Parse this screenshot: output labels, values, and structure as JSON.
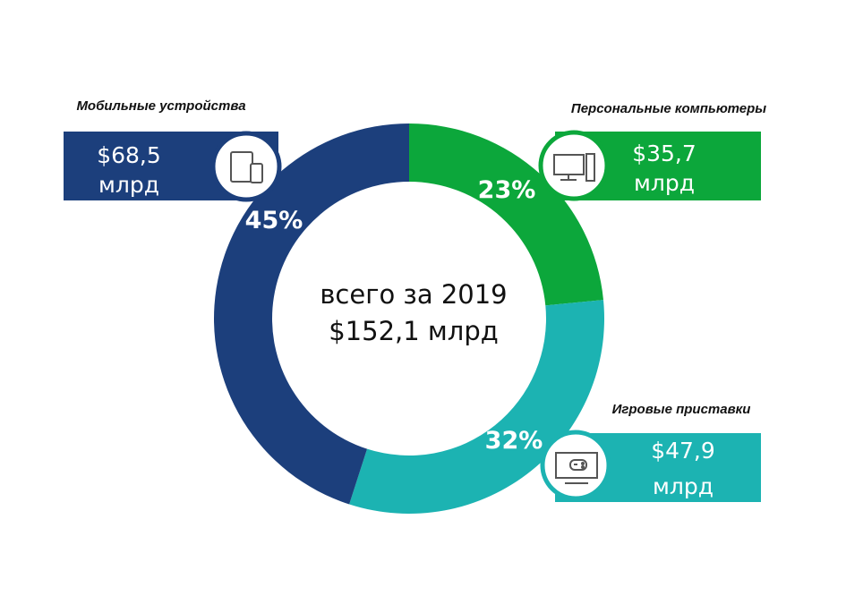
{
  "chart_data": {
    "type": "pie",
    "variant": "donut",
    "center_text": [
      "всего за 2019",
      "$152,1 млрд"
    ],
    "categories": [
      "Мобильные устройства",
      "Персональные компьютеры",
      "Игровые приставки"
    ],
    "values": [
      68.5,
      35.7,
      47.9
    ],
    "value_labels": [
      [
        "$68,5",
        "млрд"
      ],
      [
        "$35,7",
        "млрд"
      ],
      [
        "$47,9",
        "млрд"
      ]
    ],
    "percent_labels": [
      "45%",
      "23%",
      "32%"
    ],
    "icons": [
      "tablet-phone-icon",
      "desktop-computer-icon",
      "game-console-tv-icon"
    ],
    "colors": [
      "#1c3f7c",
      "#0ca73b",
      "#1cb3b2"
    ]
  }
}
